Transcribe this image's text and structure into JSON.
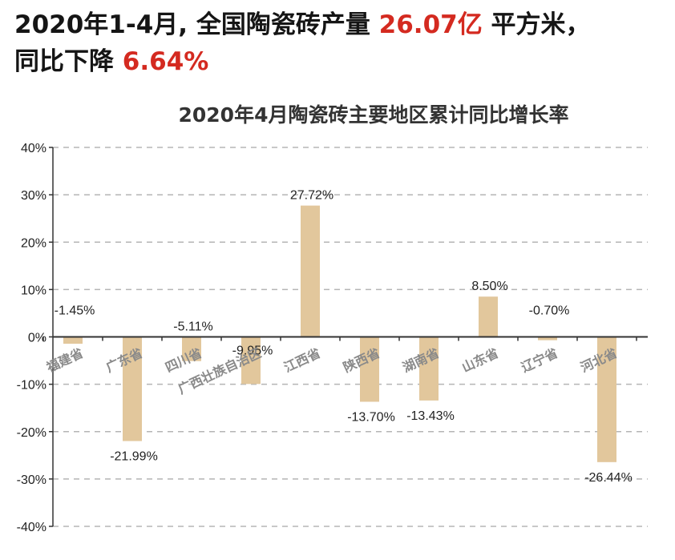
{
  "headline": {
    "line1_prefix": "2020年1-4月, 全国陶瓷砖产量",
    "line1_value": "26.07亿",
    "line1_suffix": "平方米，",
    "line2_prefix": "同比下降",
    "line2_value": "6.64%"
  },
  "colors": {
    "highlight": "#d42a20",
    "bar": "#e2c79c",
    "grid": "#b5b5b5"
  },
  "chart_data": {
    "type": "bar",
    "title": "2020年4月陶瓷砖主要地区累计同比增长率",
    "categories": [
      "福建省",
      "广东省",
      "四川省",
      "广西壮族自治区",
      "江西省",
      "陕西省",
      "湖南省",
      "山东省",
      "辽宁省",
      "河北省"
    ],
    "values": [
      -1.45,
      -21.99,
      -5.11,
      -9.95,
      27.72,
      -13.7,
      -13.43,
      8.5,
      -0.7,
      -26.44
    ],
    "data_labels": [
      "-1.45%",
      "-21.99%",
      "-5.11%",
      "-9.95%",
      "27.72%",
      "-13.70%",
      "-13.43%",
      "8.50%",
      "-0.70%",
      "-26.44%"
    ],
    "y_ticks": [
      "40%",
      "30%",
      "20%",
      "10%",
      "0%",
      "-10%",
      "-20%",
      "-30%",
      "-40%"
    ],
    "ylim": [
      -40,
      40
    ],
    "grid": true,
    "legend": false
  }
}
